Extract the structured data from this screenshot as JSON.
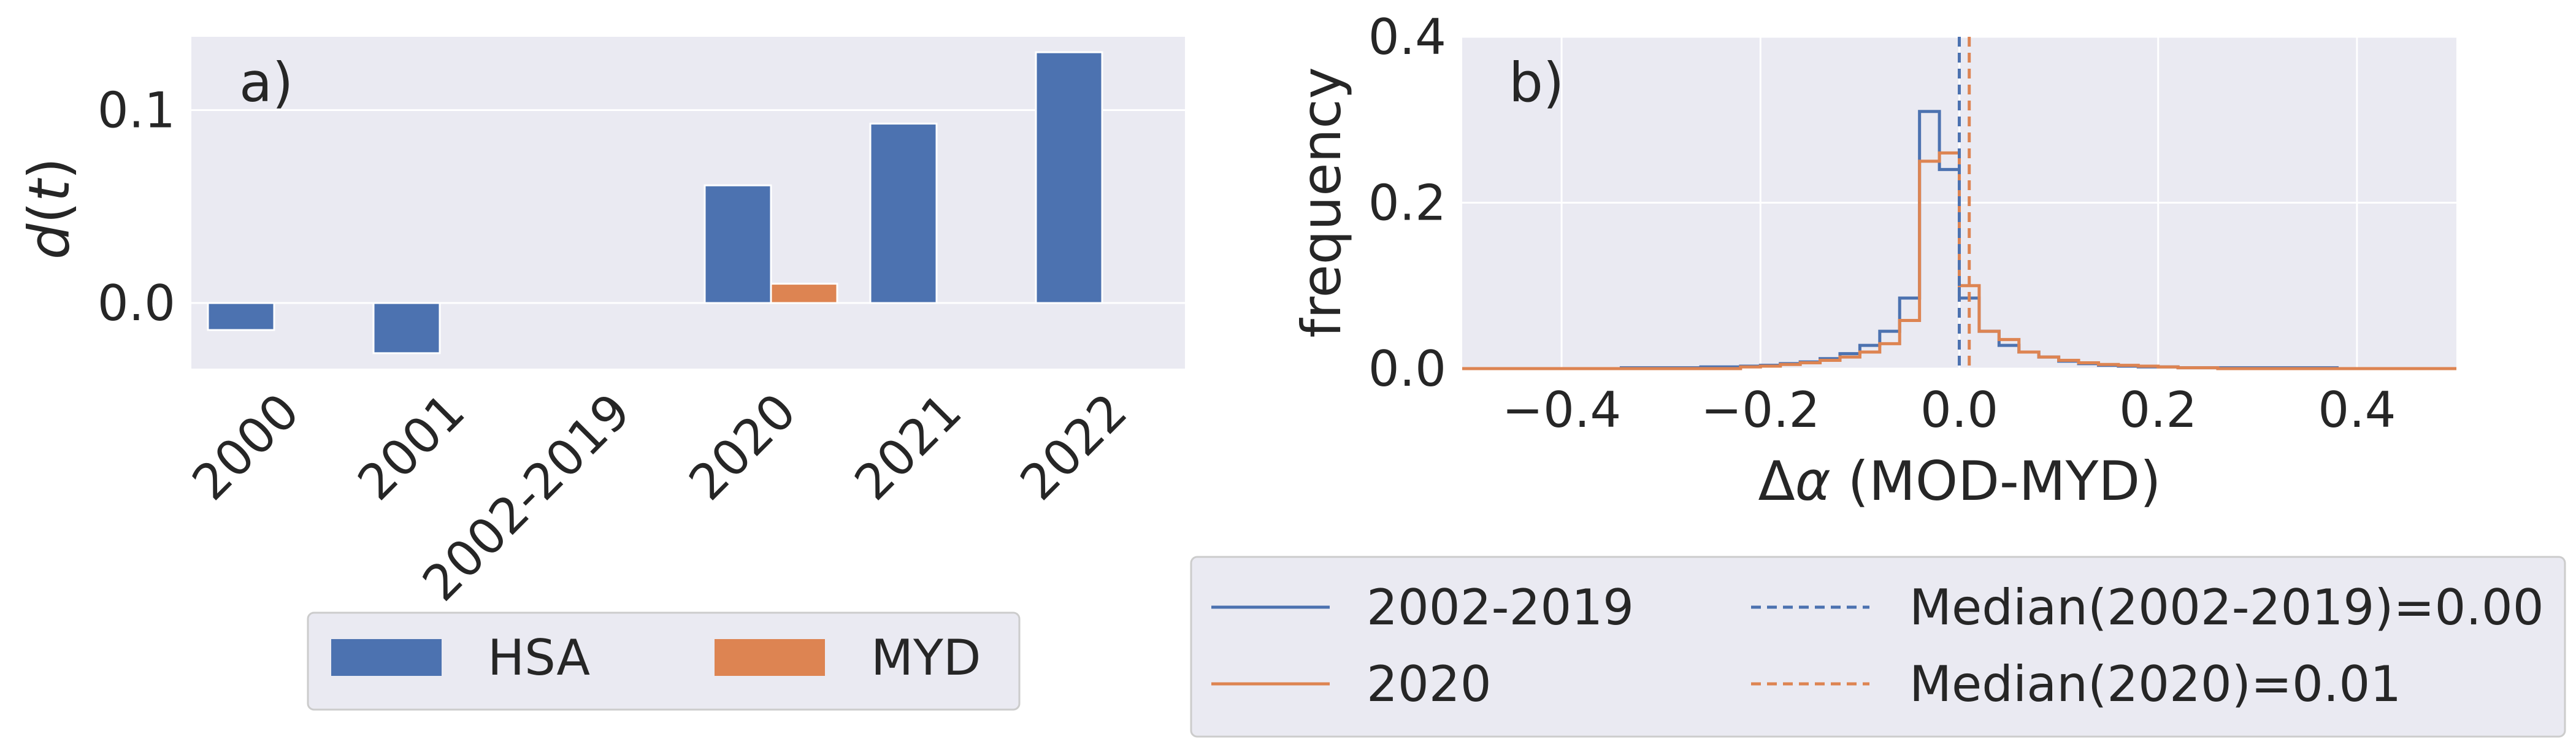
{
  "colors": {
    "panel_bg": "#eaeaf2",
    "grid": "#ffffff",
    "text": "#262626",
    "blue": "#4c72b0",
    "orange": "#dd8452",
    "legend_bg": "#eaeaf2",
    "legend_border": "#cccccc"
  },
  "chart_data": [
    {
      "panel_label": "a)",
      "type": "bar",
      "ylabel": "d(t)",
      "ylabel_var": "d",
      "ylabel_arg": "t",
      "categories": [
        "2000",
        "2001",
        "2002-2019",
        "2020",
        "2021",
        "2022"
      ],
      "series": [
        {
          "name": "HSA",
          "color": "#4c72b0",
          "values": [
            -0.014,
            -0.026,
            null,
            0.061,
            0.093,
            0.13
          ]
        },
        {
          "name": "MYD",
          "color": "#dd8452",
          "values": [
            null,
            null,
            null,
            0.01,
            null,
            null
          ]
        }
      ],
      "yticks": [
        0.0,
        0.1
      ],
      "ytick_labels": [
        "0.0",
        "0.1"
      ],
      "ylim": [
        -0.034,
        0.138
      ],
      "grid": true,
      "xtick_rotation": -45,
      "legend": {
        "placement": "bottom-center",
        "ncol": 2,
        "entries": [
          "HSA",
          "MYD"
        ]
      }
    },
    {
      "panel_label": "b)",
      "type": "histogram-step",
      "ylabel": "frequency",
      "xlabel": "Δα (MOD-MYD)",
      "xlabel_symbol": "Δ",
      "xlabel_var": "α",
      "xlabel_rest": " (MOD-MYD)",
      "xlim": [
        -0.5,
        0.5
      ],
      "ylim": [
        0.0,
        0.4
      ],
      "xticks": [
        -0.4,
        -0.2,
        0.0,
        0.2,
        0.4
      ],
      "xtick_labels": [
        "−0.4",
        "−0.2",
        "0.0",
        "0.2",
        "0.4"
      ],
      "yticks": [
        0.0,
        0.2,
        0.4
      ],
      "ytick_labels": [
        "0.0",
        "0.2",
        "0.4"
      ],
      "grid": true,
      "bin_width": 0.02,
      "series": [
        {
          "name": "2002-2019",
          "color": "#4c72b0",
          "bins_start": -0.5,
          "values": [
            0,
            0,
            0,
            0,
            0,
            0,
            0,
            0,
            0.001,
            0.001,
            0.001,
            0.001,
            0.002,
            0.002,
            0.003,
            0.004,
            0.006,
            0.008,
            0.012,
            0.018,
            0.028,
            0.045,
            0.085,
            0.31,
            0.24,
            0.085,
            0.045,
            0.028,
            0.02,
            0.014,
            0.009,
            0.006,
            0.004,
            0.003,
            0.002,
            0.002,
            0.001,
            0.001,
            0.001,
            0.001,
            0.001,
            0.001,
            0.001,
            0.001,
            0,
            0,
            0,
            0,
            0,
            0
          ]
        },
        {
          "name": "2020",
          "color": "#dd8452",
          "bins_start": -0.5,
          "values": [
            0,
            0,
            0,
            0,
            0,
            0,
            0,
            0,
            0,
            0,
            0,
            0,
            0,
            0,
            0.002,
            0.003,
            0.005,
            0.007,
            0.01,
            0.014,
            0.02,
            0.03,
            0.058,
            0.25,
            0.26,
            0.1,
            0.045,
            0.035,
            0.02,
            0.014,
            0.01,
            0.007,
            0.005,
            0.004,
            0.003,
            0.002,
            0.001,
            0.001,
            0,
            0,
            0,
            0,
            0,
            0,
            0,
            0,
            0,
            0,
            0,
            0
          ]
        }
      ],
      "medians": [
        {
          "name": "Median(2002-2019)=0.00",
          "color": "#4c72b0",
          "x": 0.0
        },
        {
          "name": "Median(2020)=0.01",
          "color": "#dd8452",
          "x": 0.01
        }
      ],
      "legend": {
        "placement": "bottom-center",
        "ncol": 2,
        "entries": [
          {
            "label": "2002-2019",
            "style": "solid",
            "color": "#4c72b0"
          },
          {
            "label": "Median(2002-2019)=0.00",
            "style": "dashed",
            "color": "#4c72b0"
          },
          {
            "label": "2020",
            "style": "solid",
            "color": "#dd8452"
          },
          {
            "label": "Median(2020)=0.01",
            "style": "dashed",
            "color": "#dd8452"
          }
        ]
      }
    }
  ]
}
